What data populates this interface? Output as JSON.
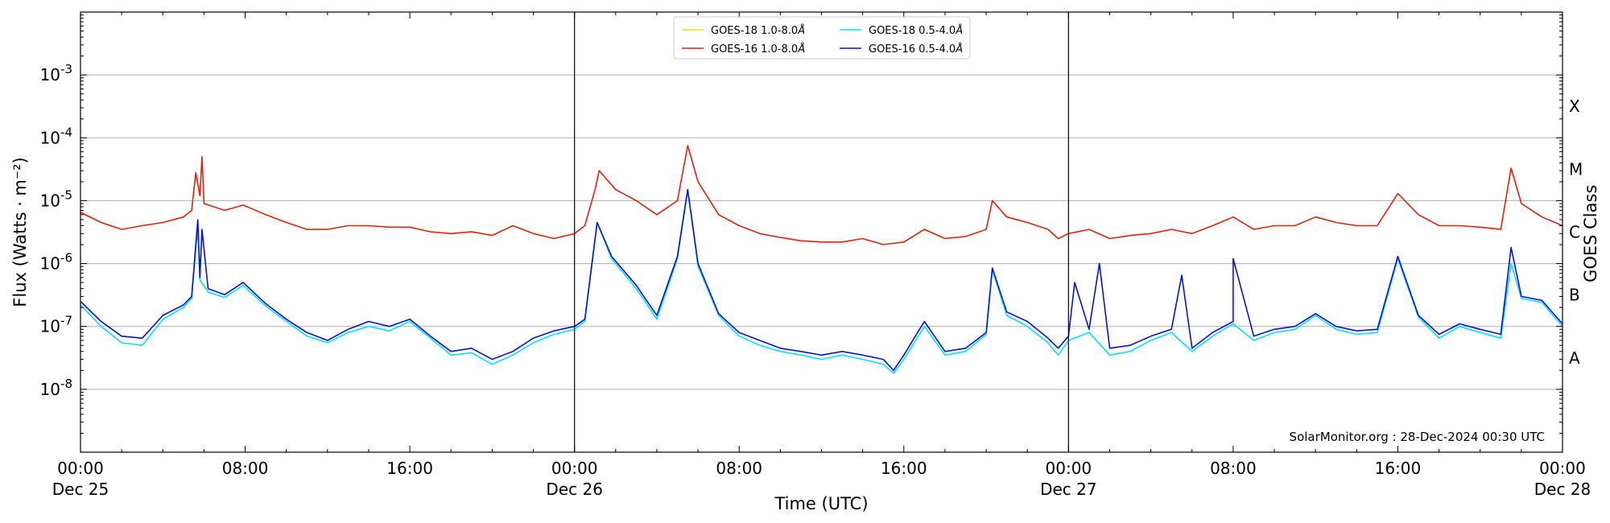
{
  "chart_data": {
    "type": "line",
    "title": "",
    "xlabel": "Time (UTC)",
    "ylabel": "Flux (Watts · m⁻²)",
    "ylabel_right": "GOES Class",
    "y_scale": "log",
    "ylim": [
      1e-09,
      0.01
    ],
    "y_ticks": [
      {
        "exp": "-8",
        "value": 1e-08
      },
      {
        "exp": "-7",
        "value": 1e-07
      },
      {
        "exp": "-6",
        "value": 1e-06
      },
      {
        "exp": "-5",
        "value": 1e-05
      },
      {
        "exp": "-4",
        "value": 0.0001
      },
      {
        "exp": "-3",
        "value": 0.001
      }
    ],
    "xlim": [
      "2024-12-25 00:00",
      "2024-12-28 00:00"
    ],
    "x_ticks": [
      {
        "hour": 0,
        "time": "00:00",
        "date": "Dec 25"
      },
      {
        "hour": 8,
        "time": "08:00",
        "date": ""
      },
      {
        "hour": 16,
        "time": "16:00",
        "date": ""
      },
      {
        "hour": 24,
        "time": "00:00",
        "date": "Dec 26"
      },
      {
        "hour": 32,
        "time": "08:00",
        "date": ""
      },
      {
        "hour": 40,
        "time": "16:00",
        "date": ""
      },
      {
        "hour": 48,
        "time": "00:00",
        "date": "Dec 27"
      },
      {
        "hour": 56,
        "time": "08:00",
        "date": ""
      },
      {
        "hour": 64,
        "time": "16:00",
        "date": ""
      },
      {
        "hour": 72,
        "time": "00:00",
        "date": "Dec 28"
      }
    ],
    "day_boundaries_hours": [
      24,
      48
    ],
    "goes_classes": [
      {
        "label": "A",
        "value": 1e-08
      },
      {
        "label": "B",
        "value": 1e-07
      },
      {
        "label": "C",
        "value": 1e-06
      },
      {
        "label": "M",
        "value": 1e-05
      },
      {
        "label": "X",
        "value": 0.0001
      }
    ],
    "grid": "horizontal",
    "legend": {
      "placement": "top-center",
      "columns": [
        [
          {
            "label": "GOES-18 1.0-8.0",
            "color": "#ffd700"
          },
          {
            "label": "GOES-16 1.0-8.0",
            "color": "#e8200c"
          }
        ],
        [
          {
            "label": "GOES-18 0.5-4.0",
            "color": "#00e5ff"
          },
          {
            "label": "GOES-16 0.5-4.0",
            "color": "#0a10e0"
          }
        ]
      ],
      "unit": "Å"
    },
    "annotation": "SolarMonitor.org : 28-Dec-2024 00:30 UTC",
    "series": [
      {
        "name": "GOES-18 0.5-4.0",
        "color": "#00e5ff",
        "points": [
          [
            0,
            2.2e-07
          ],
          [
            1,
            1e-07
          ],
          [
            2,
            5.5e-08
          ],
          [
            3,
            5e-08
          ],
          [
            4,
            1.3e-07
          ],
          [
            5,
            2e-07
          ],
          [
            5.4,
            2.8e-07
          ],
          [
            5.7,
            4e-06
          ],
          [
            5.8,
            5.5e-07
          ],
          [
            6.2,
            3.5e-07
          ],
          [
            7,
            2.9e-07
          ],
          [
            7.9,
            4.5e-07
          ],
          [
            9,
            2.1e-07
          ],
          [
            10,
            1.2e-07
          ],
          [
            11,
            7e-08
          ],
          [
            12,
            5.5e-08
          ],
          [
            13,
            8e-08
          ],
          [
            14,
            1e-07
          ],
          [
            15,
            8.5e-08
          ],
          [
            16,
            1.2e-07
          ],
          [
            17,
            6.5e-08
          ],
          [
            18,
            3.5e-08
          ],
          [
            19,
            3.8e-08
          ],
          [
            20,
            2.5e-08
          ],
          [
            21,
            3.5e-08
          ],
          [
            22,
            5.5e-08
          ],
          [
            23,
            7.5e-08
          ],
          [
            24,
            9e-08
          ],
          [
            24.5,
            1.2e-07
          ],
          [
            25.1,
            4.5e-06
          ],
          [
            25.8,
            1.2e-06
          ],
          [
            27,
            4e-07
          ],
          [
            28,
            1.3e-07
          ],
          [
            29,
            1.2e-06
          ],
          [
            29.5,
            1.5e-05
          ],
          [
            30,
            9e-07
          ],
          [
            31,
            1.5e-07
          ],
          [
            32,
            7e-08
          ],
          [
            33,
            5e-08
          ],
          [
            34,
            4e-08
          ],
          [
            35,
            3.5e-08
          ],
          [
            36,
            3e-08
          ],
          [
            37,
            3.5e-08
          ],
          [
            38,
            3e-08
          ],
          [
            39,
            2.5e-08
          ],
          [
            39.5,
            1.8e-08
          ],
          [
            40,
            3e-08
          ],
          [
            41,
            1e-07
          ],
          [
            42,
            3.5e-08
          ],
          [
            43,
            4e-08
          ],
          [
            44,
            7.5e-08
          ],
          [
            44.3,
            8e-07
          ],
          [
            45,
            1.5e-07
          ],
          [
            46,
            1e-07
          ],
          [
            47,
            5.5e-08
          ],
          [
            47.5,
            3.5e-08
          ],
          [
            48,
            6e-08
          ],
          [
            49,
            8e-08
          ],
          [
            50,
            3.5e-08
          ],
          [
            51,
            4e-08
          ],
          [
            52,
            6e-08
          ],
          [
            53,
            8e-08
          ],
          [
            54,
            4e-08
          ],
          [
            55,
            7e-08
          ],
          [
            56,
            1.1e-07
          ],
          [
            57,
            6e-08
          ],
          [
            58,
            8e-08
          ],
          [
            59,
            9e-08
          ],
          [
            60,
            1.5e-07
          ],
          [
            61,
            9e-08
          ],
          [
            62,
            7.5e-08
          ],
          [
            63,
            8e-08
          ],
          [
            64,
            1.2e-06
          ],
          [
            65,
            1.4e-07
          ],
          [
            66,
            6.5e-08
          ],
          [
            67,
            1e-07
          ],
          [
            68,
            8e-08
          ],
          [
            69,
            6.5e-08
          ],
          [
            69.5,
            1e-06
          ],
          [
            70,
            2.8e-07
          ],
          [
            71,
            2.4e-07
          ],
          [
            72,
            1e-07
          ]
        ]
      },
      {
        "name": "GOES-16 1.0-8.0",
        "color": "#e8200c",
        "points": [
          [
            0,
            6.5e-06
          ],
          [
            1,
            4.5e-06
          ],
          [
            2,
            3.5e-06
          ],
          [
            3,
            4e-06
          ],
          [
            4,
            4.5e-06
          ],
          [
            5,
            5.5e-06
          ],
          [
            5.4,
            7e-06
          ],
          [
            5.6,
            2.8e-05
          ],
          [
            5.8,
            1.2e-05
          ],
          [
            5.9,
            5e-05
          ],
          [
            6,
            9e-06
          ],
          [
            7,
            7e-06
          ],
          [
            7.9,
            8.5e-06
          ],
          [
            9,
            6e-06
          ],
          [
            10,
            4.5e-06
          ],
          [
            11,
            3.5e-06
          ],
          [
            12,
            3.5e-06
          ],
          [
            13,
            4e-06
          ],
          [
            14,
            4e-06
          ],
          [
            15,
            3.8e-06
          ],
          [
            16,
            3.8e-06
          ],
          [
            17,
            3.2e-06
          ],
          [
            18,
            3e-06
          ],
          [
            19,
            3.2e-06
          ],
          [
            20,
            2.8e-06
          ],
          [
            21,
            4e-06
          ],
          [
            22,
            3e-06
          ],
          [
            23,
            2.5e-06
          ],
          [
            24,
            3e-06
          ],
          [
            24.5,
            4e-06
          ],
          [
            25,
            1.5e-05
          ],
          [
            25.2,
            3e-05
          ],
          [
            26,
            1.5e-05
          ],
          [
            27,
            1e-05
          ],
          [
            28,
            6e-06
          ],
          [
            29,
            1e-05
          ],
          [
            29.5,
            7.5e-05
          ],
          [
            30,
            2e-05
          ],
          [
            31,
            6e-06
          ],
          [
            32,
            4e-06
          ],
          [
            33,
            3e-06
          ],
          [
            34,
            2.6e-06
          ],
          [
            35,
            2.3e-06
          ],
          [
            36,
            2.2e-06
          ],
          [
            37,
            2.2e-06
          ],
          [
            38,
            2.5e-06
          ],
          [
            39,
            2e-06
          ],
          [
            40,
            2.2e-06
          ],
          [
            41,
            3.5e-06
          ],
          [
            42,
            2.5e-06
          ],
          [
            43,
            2.7e-06
          ],
          [
            44,
            3.5e-06
          ],
          [
            44.3,
            1e-05
          ],
          [
            45,
            5.5e-06
          ],
          [
            46,
            4.5e-06
          ],
          [
            47,
            3.5e-06
          ],
          [
            47.5,
            2.5e-06
          ],
          [
            48,
            3e-06
          ],
          [
            49,
            3.5e-06
          ],
          [
            50,
            2.5e-06
          ],
          [
            51,
            2.8e-06
          ],
          [
            52,
            3e-06
          ],
          [
            53,
            3.5e-06
          ],
          [
            54,
            3e-06
          ],
          [
            55,
            4e-06
          ],
          [
            56,
            5.5e-06
          ],
          [
            57,
            3.5e-06
          ],
          [
            58,
            4e-06
          ],
          [
            59,
            4e-06
          ],
          [
            60,
            5.5e-06
          ],
          [
            61,
            4.5e-06
          ],
          [
            62,
            4e-06
          ],
          [
            63,
            4e-06
          ],
          [
            64,
            1.3e-05
          ],
          [
            65,
            6e-06
          ],
          [
            66,
            4e-06
          ],
          [
            67,
            4e-06
          ],
          [
            68,
            3.8e-06
          ],
          [
            69,
            3.5e-06
          ],
          [
            69.5,
            3.3e-05
          ],
          [
            70,
            9e-06
          ],
          [
            71,
            5.5e-06
          ],
          [
            72,
            4e-06
          ]
        ]
      },
      {
        "name": "GOES-16 0.5-4.0",
        "color": "#0a10e0",
        "points": [
          [
            0,
            2.5e-07
          ],
          [
            1,
            1.2e-07
          ],
          [
            2,
            7e-08
          ],
          [
            3,
            6.5e-08
          ],
          [
            4,
            1.5e-07
          ],
          [
            5,
            2.2e-07
          ],
          [
            5.4,
            3e-07
          ],
          [
            5.7,
            5e-06
          ],
          [
            5.8,
            6e-07
          ],
          [
            5.9,
            3.5e-06
          ],
          [
            6.2,
            4e-07
          ],
          [
            7,
            3.2e-07
          ],
          [
            7.9,
            5e-07
          ],
          [
            9,
            2.3e-07
          ],
          [
            10,
            1.3e-07
          ],
          [
            11,
            8e-08
          ],
          [
            12,
            6e-08
          ],
          [
            13,
            9e-08
          ],
          [
            14,
            1.2e-07
          ],
          [
            15,
            1e-07
          ],
          [
            16,
            1.3e-07
          ],
          [
            17,
            7e-08
          ],
          [
            18,
            4e-08
          ],
          [
            19,
            4.5e-08
          ],
          [
            20,
            3e-08
          ],
          [
            21,
            4e-08
          ],
          [
            22,
            6.5e-08
          ],
          [
            23,
            8.5e-08
          ],
          [
            24,
            1e-07
          ],
          [
            24.5,
            1.3e-07
          ],
          [
            25.1,
            4.5e-06
          ],
          [
            25.8,
            1.3e-06
          ],
          [
            27,
            4.5e-07
          ],
          [
            28,
            1.5e-07
          ],
          [
            29,
            1.3e-06
          ],
          [
            29.5,
            1.5e-05
          ],
          [
            30,
            1e-06
          ],
          [
            31,
            1.6e-07
          ],
          [
            32,
            8e-08
          ],
          [
            33,
            6e-08
          ],
          [
            34,
            4.5e-08
          ],
          [
            35,
            4e-08
          ],
          [
            36,
            3.5e-08
          ],
          [
            37,
            4e-08
          ],
          [
            38,
            3.5e-08
          ],
          [
            39,
            3e-08
          ],
          [
            39.5,
            2e-08
          ],
          [
            40,
            3.5e-08
          ],
          [
            41,
            1.2e-07
          ],
          [
            42,
            4e-08
          ],
          [
            43,
            4.5e-08
          ],
          [
            44,
            8e-08
          ],
          [
            44.3,
            8.5e-07
          ],
          [
            45,
            1.7e-07
          ],
          [
            46,
            1.2e-07
          ],
          [
            47,
            6.5e-08
          ],
          [
            47.5,
            4.5e-08
          ],
          [
            48,
            7e-08
          ],
          [
            48.3,
            5e-07
          ],
          [
            49,
            9e-08
          ],
          [
            49.5,
            1e-06
          ],
          [
            50,
            4.5e-08
          ],
          [
            51,
            5e-08
          ],
          [
            52,
            7e-08
          ],
          [
            53,
            9e-08
          ],
          [
            53.5,
            6.5e-07
          ],
          [
            54,
            4.5e-08
          ],
          [
            55,
            8e-08
          ],
          [
            56,
            1.2e-07
          ],
          [
            56,
            1.2e-06
          ],
          [
            57,
            7e-08
          ],
          [
            58,
            9e-08
          ],
          [
            59,
            1e-07
          ],
          [
            60,
            1.6e-07
          ],
          [
            61,
            1e-07
          ],
          [
            62,
            8.5e-08
          ],
          [
            63,
            9e-08
          ],
          [
            64,
            1.3e-06
          ],
          [
            65,
            1.5e-07
          ],
          [
            66,
            7.5e-08
          ],
          [
            67,
            1.1e-07
          ],
          [
            68,
            9e-08
          ],
          [
            69,
            7.5e-08
          ],
          [
            69.5,
            1.8e-06
          ],
          [
            70,
            3e-07
          ],
          [
            71,
            2.6e-07
          ],
          [
            72,
            1.1e-07
          ]
        ]
      },
      {
        "name": "GOES-18 1.0-8.0",
        "color": "#ffd700",
        "points": []
      }
    ]
  }
}
